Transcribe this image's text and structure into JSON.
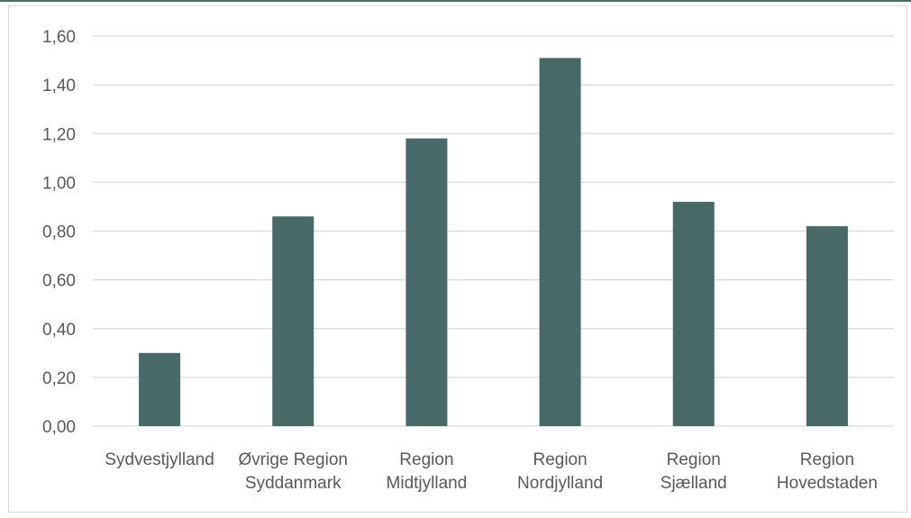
{
  "chart_data": {
    "type": "bar",
    "categories": [
      [
        "Sydvestjylland"
      ],
      [
        "Øvrige Region",
        "Syddanmark"
      ],
      [
        "Region",
        "Midtjylland"
      ],
      [
        "Region",
        "Nordjylland"
      ],
      [
        "Region",
        "Sjælland"
      ],
      [
        "Region",
        "Hovedstaden"
      ]
    ],
    "values": [
      0.3,
      0.86,
      1.18,
      1.51,
      0.92,
      0.82
    ],
    "ylim": [
      0,
      1.6
    ],
    "yticks": [
      "0,00",
      "0,20",
      "0,40",
      "0,60",
      "0,80",
      "1,00",
      "1,20",
      "1,40",
      "1,60"
    ],
    "title": "",
    "xlabel": "",
    "ylabel": "",
    "grid": true,
    "bar_color": "#476a67",
    "grid_color": "#d9d9d9",
    "label_color": "#595959"
  }
}
